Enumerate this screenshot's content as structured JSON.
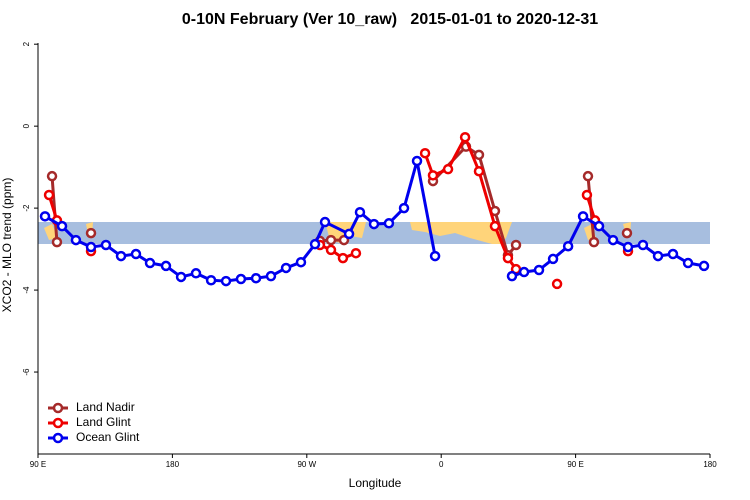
{
  "chart_data": {
    "type": "line",
    "title": "0-10N February (Ver 10_raw)   2015-01-01 to 2020-12-31",
    "xlabel": "Longitude",
    "ylabel": "XCO2 - MLO trend (ppm)",
    "xlim": [
      90,
      540
    ],
    "xticks": [
      {
        "value": 90,
        "label": "90 E"
      },
      180,
      {
        "value": 270,
        "label": "90 W"
      },
      {
        "value": 360,
        "label": "0"
      },
      {
        "value": 450,
        "label": "90 E"
      },
      {
        "value": 540,
        "label": "180"
      }
    ],
    "ylim": [
      -8,
      2.2
    ],
    "yticks": [
      2,
      0,
      -2,
      -4,
      -6
    ],
    "legend": "bottom-left",
    "series": [
      {
        "name": "Land Nadir",
        "color": "#a52a2a",
        "x": [
          99.4,
          102.7,
          null,
          125.5,
          null,
          278.8,
          286.2,
          294.9,
          null,
          354.5,
          376.6,
          385.3,
          396,
          404.7,
          410.1,
          null,
          458.3,
          462.3,
          null,
          484.4
        ],
        "values": [
          -1.22,
          -2.83,
          null,
          -2.61,
          null,
          -2.8,
          -2.78,
          -2.78,
          null,
          -1.34,
          -0.5,
          -0.7,
          -2.07,
          -3.15,
          -2.9,
          null,
          -1.22,
          -2.83,
          null,
          -2.61
        ]
      },
      {
        "name": "Land Glint",
        "color": "#ee0000",
        "x": [
          97.4,
          102.7,
          null,
          125.5,
          null,
          278.8,
          286.2,
          294.2,
          302.9,
          null,
          349.2,
          354.5,
          364.6,
          376,
          385.3,
          396,
          404.7,
          410.1,
          null,
          437.6,
          null,
          457.6,
          463,
          null,
          485.1
        ],
        "values": [
          -1.68,
          -2.3,
          null,
          -3.05,
          null,
          -2.9,
          -3.02,
          -3.22,
          -3.1,
          null,
          -0.66,
          -1.2,
          -1.05,
          -0.27,
          -1.1,
          -2.44,
          -3.22,
          -3.49,
          null,
          -3.85,
          null,
          -1.68,
          -2.3,
          null,
          -3.05
        ]
      },
      {
        "name": "Ocean Glint",
        "color": "#0000ee",
        "x": [
          94.7,
          106.1,
          115.4,
          125.5,
          135.5,
          145.6,
          155.6,
          165,
          175.7,
          185.8,
          195.8,
          205.9,
          215.9,
          225.9,
          236,
          246,
          256.1,
          266.1,
          275.5,
          282.2,
          298.3,
          305.6,
          315,
          325,
          335.1,
          343.8,
          355.9,
          null,
          407.4,
          415.5,
          425.5,
          434.9,
          445,
          455,
          465.7,
          475.1,
          485.1,
          495.1,
          505.2,
          515.2,
          525.3,
          536
        ],
        "values": [
          -2.2,
          -2.44,
          -2.78,
          -2.95,
          -2.9,
          -3.17,
          -3.12,
          -3.34,
          -3.41,
          -3.68,
          -3.59,
          -3.76,
          -3.78,
          -3.73,
          -3.71,
          -3.66,
          -3.46,
          -3.32,
          -2.88,
          -2.34,
          -2.63,
          -2.1,
          -2.39,
          -2.37,
          -2.0,
          -0.85,
          -3.17,
          null,
          -3.66,
          -3.56,
          -3.51,
          -3.24,
          -2.93,
          -2.2,
          -2.44,
          -2.78,
          -2.95,
          -2.9,
          -3.17,
          -3.12,
          -3.34,
          -3.41
        ]
      }
    ]
  }
}
